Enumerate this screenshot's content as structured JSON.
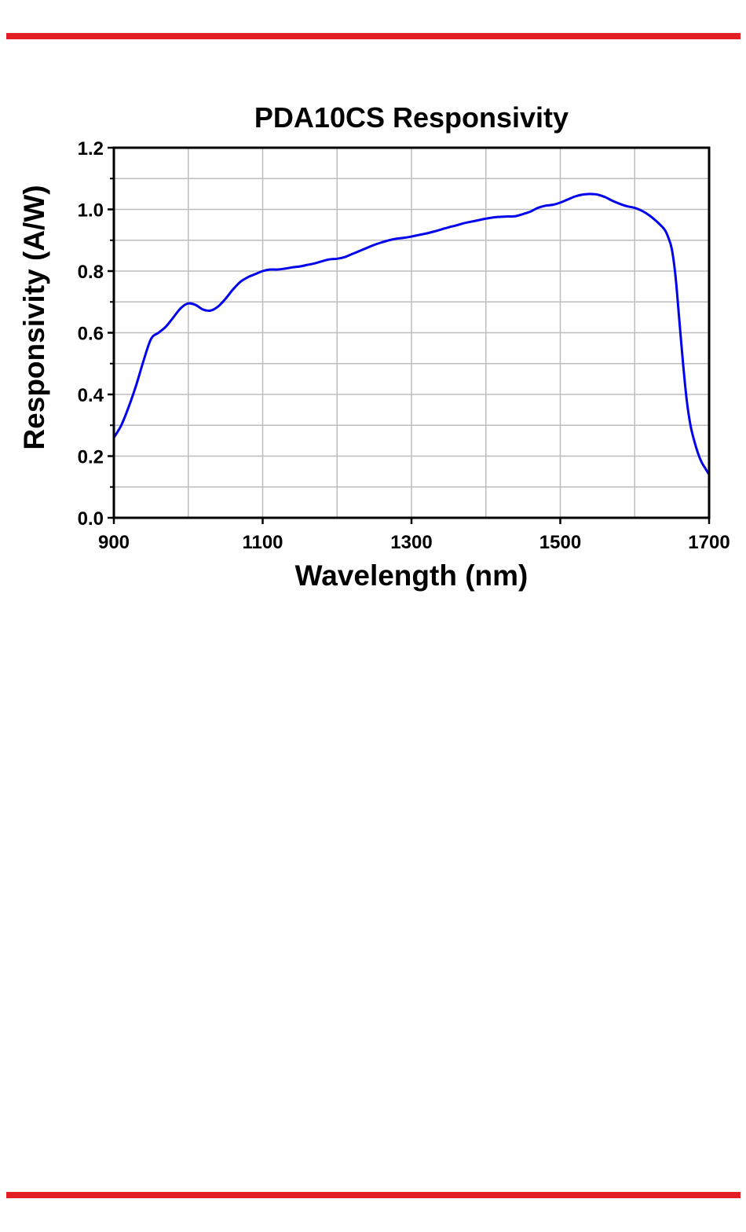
{
  "page": {
    "accent_color": "#e31e24"
  },
  "chart_data": {
    "type": "line",
    "title": "PDA10CS Responsivity",
    "xlabel": "Wavelength (nm)",
    "ylabel": "Responsivity (A/W)",
    "xlim": [
      900,
      1700
    ],
    "ylim": [
      0,
      1.2
    ],
    "x_ticks": [
      900,
      1100,
      1300,
      1500,
      1700
    ],
    "x_tick_labels": [
      "900",
      "1100",
      "1300",
      "1500",
      "1700"
    ],
    "y_ticks": [
      0,
      0.2,
      0.4,
      0.6,
      0.8,
      1.0,
      1.2
    ],
    "y_tick_labels": [
      "0.0",
      "0.2",
      "0.4",
      "0.6",
      "0.8",
      "1.0",
      "1.2"
    ],
    "grid": true,
    "series": [
      {
        "color": "#0000ee",
        "x": [
          900,
          910,
          920,
          930,
          940,
          950,
          960,
          970,
          980,
          990,
          1000,
          1010,
          1020,
          1030,
          1040,
          1050,
          1060,
          1070,
          1080,
          1090,
          1100,
          1110,
          1120,
          1130,
          1140,
          1150,
          1160,
          1170,
          1180,
          1190,
          1200,
          1210,
          1220,
          1230,
          1240,
          1250,
          1260,
          1270,
          1280,
          1290,
          1300,
          1310,
          1320,
          1330,
          1340,
          1350,
          1360,
          1370,
          1380,
          1390,
          1400,
          1410,
          1420,
          1430,
          1440,
          1450,
          1460,
          1470,
          1480,
          1490,
          1500,
          1510,
          1520,
          1530,
          1540,
          1550,
          1560,
          1570,
          1580,
          1590,
          1600,
          1610,
          1620,
          1630,
          1640,
          1645,
          1650,
          1655,
          1660,
          1665,
          1670,
          1675,
          1680,
          1685,
          1690,
          1695,
          1700
        ],
        "y": [
          0.26,
          0.3,
          0.36,
          0.43,
          0.51,
          0.58,
          0.6,
          0.62,
          0.65,
          0.68,
          0.695,
          0.69,
          0.675,
          0.672,
          0.685,
          0.71,
          0.74,
          0.765,
          0.78,
          0.79,
          0.8,
          0.805,
          0.805,
          0.808,
          0.812,
          0.815,
          0.82,
          0.825,
          0.832,
          0.838,
          0.84,
          0.845,
          0.855,
          0.865,
          0.875,
          0.885,
          0.893,
          0.9,
          0.905,
          0.908,
          0.912,
          0.917,
          0.922,
          0.928,
          0.935,
          0.942,
          0.948,
          0.955,
          0.96,
          0.965,
          0.97,
          0.974,
          0.976,
          0.977,
          0.978,
          0.985,
          0.993,
          1.005,
          1.012,
          1.015,
          1.022,
          1.032,
          1.042,
          1.048,
          1.05,
          1.048,
          1.04,
          1.028,
          1.018,
          1.01,
          1.005,
          0.995,
          0.98,
          0.96,
          0.935,
          0.91,
          0.87,
          0.78,
          0.64,
          0.5,
          0.38,
          0.3,
          0.25,
          0.21,
          0.18,
          0.16,
          0.14
        ]
      }
    ]
  }
}
